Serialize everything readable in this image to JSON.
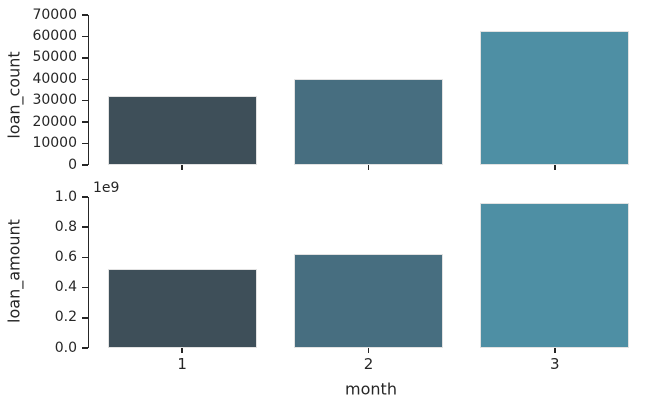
{
  "figure": {
    "description": "Two stacked seaborn-style bar subplots sharing x axis month",
    "background_color": "#ffffff",
    "text_color": "#262626",
    "axis_color": "#262626"
  },
  "chart_data": [
    {
      "type": "bar",
      "categories": [
        "1",
        "2",
        "3"
      ],
      "values": [
        32000,
        40000,
        62500
      ],
      "title": "",
      "xlabel": "",
      "ylabel": "loan_count",
      "ylim": [
        0,
        70000
      ],
      "ytick_values": [
        0,
        10000,
        20000,
        30000,
        40000,
        50000,
        60000,
        70000
      ],
      "ytick_labels": [
        "0",
        "10000",
        "20000",
        "30000",
        "40000",
        "50000",
        "60000",
        "70000"
      ],
      "bar_colors": [
        "#3e4f59",
        "#476e80",
        "#4e8fa4"
      ],
      "grid": false,
      "legend": "none",
      "show_category_labels": false
    },
    {
      "type": "bar",
      "categories": [
        "1",
        "2",
        "3"
      ],
      "values": [
        520000000,
        620000000,
        960000000
      ],
      "title": "",
      "xlabel": "month",
      "ylabel": "loan_amount",
      "ylim": [
        0,
        1000000000
      ],
      "ytick_values": [
        0,
        200000000,
        400000000,
        600000000,
        800000000,
        1000000000
      ],
      "ytick_labels": [
        "0.0",
        "0.2",
        "0.4",
        "0.6",
        "0.8",
        "1.0"
      ],
      "offset_text": "1e9",
      "bar_colors": [
        "#3e4f59",
        "#476e80",
        "#4e8fa4"
      ],
      "grid": false,
      "legend": "none",
      "show_category_labels": true
    }
  ]
}
